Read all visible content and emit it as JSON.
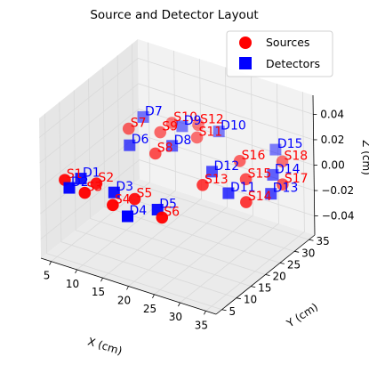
{
  "chart_data": {
    "type": "scatter",
    "projection": "3d",
    "title": "Source and Detector Layout",
    "xlabel": "X (cm)",
    "ylabel": "Y (cm)",
    "zlabel": "Z (cm)",
    "xlim": [
      3,
      37
    ],
    "ylim": [
      3,
      37
    ],
    "zlim": [
      -0.055,
      0.055
    ],
    "x_ticks": [
      5,
      10,
      15,
      20,
      25,
      30,
      35
    ],
    "y_ticks": [
      5,
      10,
      15,
      20,
      25,
      30,
      35
    ],
    "z_ticks": [
      "0.04",
      "0.02",
      "0.00",
      "−0.02",
      "−0.04"
    ],
    "z_tick_values": [
      0.04,
      0.02,
      0.0,
      -0.02,
      -0.04
    ],
    "grid": true,
    "legend_position": "top-right",
    "series": [
      {
        "name": "Sources",
        "marker": "circle",
        "color": "#ff0000",
        "label_color": "#ff0000",
        "points": [
          {
            "label": "S1",
            "x": 5,
            "y": 8,
            "z": 0
          },
          {
            "label": "S2",
            "x": 10,
            "y": 10,
            "z": 0
          },
          {
            "label": "S3",
            "x": 10,
            "y": 6,
            "z": 0
          },
          {
            "label": "S4",
            "x": 16,
            "y": 5,
            "z": 0
          },
          {
            "label": "S5",
            "x": 18,
            "y": 9,
            "z": 0
          },
          {
            "label": "S6",
            "x": 25,
            "y": 6,
            "z": 0
          },
          {
            "label": "S7",
            "x": 5,
            "y": 30,
            "z": 0
          },
          {
            "label": "S8",
            "x": 13,
            "y": 25,
            "z": 0
          },
          {
            "label": "S9",
            "x": 10,
            "y": 32,
            "z": 0
          },
          {
            "label": "S10",
            "x": 10,
            "y": 36,
            "z": 0
          },
          {
            "label": "S11",
            "x": 16,
            "y": 34,
            "z": 0
          },
          {
            "label": "S12",
            "x": 14,
            "y": 38,
            "z": 0
          },
          {
            "label": "S13",
            "x": 25,
            "y": 20,
            "z": 0
          },
          {
            "label": "S14",
            "x": 34,
            "y": 19,
            "z": 0
          },
          {
            "label": "S15",
            "x": 30,
            "y": 26,
            "z": 0
          },
          {
            "label": "S16",
            "x": 26,
            "y": 31,
            "z": 0
          },
          {
            "label": "S17",
            "x": 36,
            "y": 28,
            "z": 0
          },
          {
            "label": "S18",
            "x": 32,
            "y": 35,
            "z": 0
          }
        ]
      },
      {
        "name": "Detectors",
        "marker": "square",
        "color": "#0000ff",
        "label_color": "#0000ff",
        "points": [
          {
            "label": "D1",
            "x": 7,
            "y": 10,
            "z": 0
          },
          {
            "label": "D2",
            "x": 7,
            "y": 6,
            "z": 0
          },
          {
            "label": "D3",
            "x": 14,
            "y": 9,
            "z": 0
          },
          {
            "label": "D4",
            "x": 20,
            "y": 3,
            "z": 0
          },
          {
            "label": "D5",
            "x": 23,
            "y": 8,
            "z": 0
          },
          {
            "label": "D6",
            "x": 8,
            "y": 25,
            "z": 0
          },
          {
            "label": "D7",
            "x": 5,
            "y": 35,
            "z": 0
          },
          {
            "label": "D8",
            "x": 14,
            "y": 29,
            "z": 0
          },
          {
            "label": "D9",
            "x": 12,
            "y": 36,
            "z": 0
          },
          {
            "label": "D10",
            "x": 18,
            "y": 38,
            "z": 0
          },
          {
            "label": "D11",
            "x": 30,
            "y": 20,
            "z": 0
          },
          {
            "label": "D12",
            "x": 24,
            "y": 25,
            "z": 0
          },
          {
            "label": "D13",
            "x": 36,
            "y": 24,
            "z": 0
          },
          {
            "label": "D14",
            "x": 33,
            "y": 30,
            "z": 0
          },
          {
            "label": "D15",
            "x": 29,
            "y": 38,
            "z": 0
          }
        ]
      }
    ]
  },
  "colors": {
    "pane_fill": "#f2f2f2",
    "pane_fill_side": "#e6e6e6",
    "pane_fill_floor": "#ebebeb",
    "grid": "#d9d9d9"
  }
}
